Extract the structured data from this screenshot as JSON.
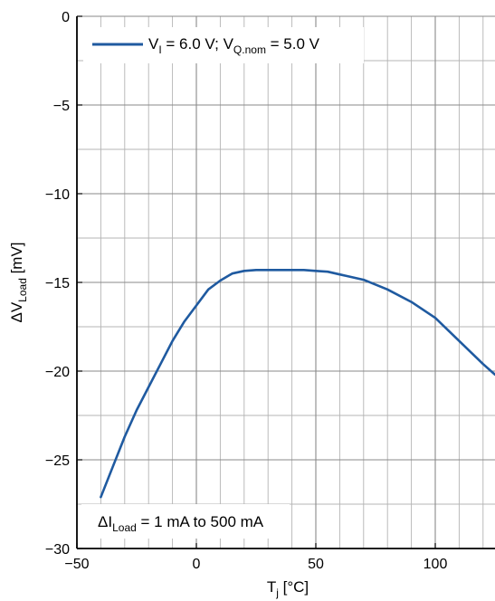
{
  "chart_data": {
    "type": "line",
    "title": "",
    "xlabel": {
      "main": "T",
      "sub": "j",
      "unit": " [°C]"
    },
    "ylabel": {
      "prefix": "ΔV",
      "sub": "Load",
      "unit": " [mV]"
    },
    "xlim": [
      -50,
      125
    ],
    "ylim": [
      -30,
      0
    ],
    "xticks": [
      -50,
      0,
      50,
      100
    ],
    "xtick_labels": [
      "−50",
      "0",
      "50",
      "100"
    ],
    "yticks": [
      0,
      -5,
      -10,
      -15,
      -20,
      -25,
      -30
    ],
    "ytick_labels": [
      "0",
      "−5",
      "−10",
      "−15",
      "−20",
      "−25",
      "−30"
    ],
    "grid": true,
    "x_minor_step": 10,
    "y_minor_step": 2.5,
    "legend_position": "top-left",
    "series": [
      {
        "name_parts": [
          "V",
          "I",
          " = 6.0 V; V",
          "Q.nom",
          " = 5.0 V"
        ],
        "color": "#1f5aa0",
        "x": [
          -40,
          -35,
          -30,
          -25,
          -20,
          -15,
          -10,
          -5,
          0,
          5,
          10,
          15,
          20,
          25,
          30,
          40,
          45,
          50,
          55,
          60,
          70,
          80,
          90,
          100,
          110,
          120,
          125
        ],
        "y": [
          -27.1,
          -25.4,
          -23.7,
          -22.2,
          -20.9,
          -19.6,
          -18.3,
          -17.2,
          -16.3,
          -15.4,
          -14.9,
          -14.5,
          -14.35,
          -14.3,
          -14.3,
          -14.3,
          -14.3,
          -14.35,
          -14.4,
          -14.55,
          -14.85,
          -15.4,
          -16.1,
          -17.0,
          -18.3,
          -19.6,
          -20.2
        ]
      }
    ],
    "annotations": [
      {
        "parts": [
          "ΔI",
          "Load",
          " = 1 mA to 500 mA"
        ],
        "position": "bottom-left"
      }
    ]
  }
}
